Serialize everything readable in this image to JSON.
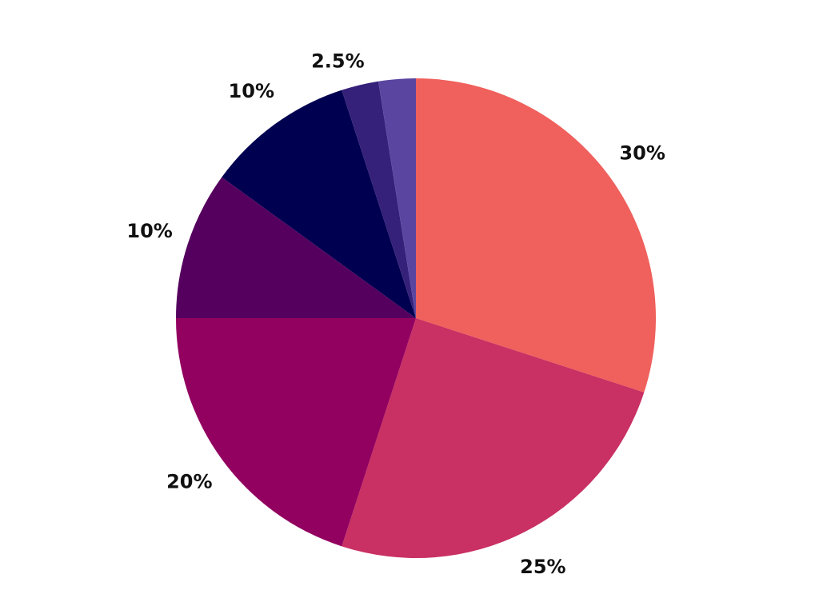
{
  "chart_data": {
    "type": "pie",
    "values": [
      30,
      25,
      20,
      10,
      10,
      2.5,
      2.5
    ],
    "value_labels": [
      "30%",
      "25%",
      "20%",
      "10%",
      "10%",
      "2.5%",
      null
    ],
    "colors": [
      "#f0605c",
      "#c93063",
      "#920060",
      "#55005e",
      "#000050",
      "#35207a",
      "#5a45a0"
    ]
  }
}
